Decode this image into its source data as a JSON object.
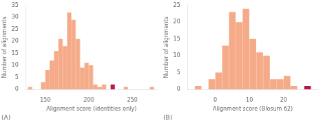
{
  "chart_data": [
    {
      "type": "bar",
      "x": [
        132.5,
        137.5,
        142.5,
        147.5,
        152.5,
        157.5,
        162.5,
        167.5,
        172.5,
        177.5,
        182.5,
        187.5,
        192.5,
        197.5,
        202.5,
        207.5,
        212.5,
        217.5,
        222.5,
        227.5,
        232.5,
        242.5,
        267.5,
        272.5
      ],
      "values": [
        1,
        0,
        0,
        3,
        8,
        12,
        16,
        21,
        18,
        32,
        29,
        21,
        9,
        11,
        10,
        2,
        1,
        2,
        0,
        2,
        0,
        1,
        0,
        1
      ],
      "colors": [
        "#f5aa88",
        "#f5aa88",
        "#f5aa88",
        "#f5aa88",
        "#f5aa88",
        "#f5aa88",
        "#f5aa88",
        "#f5aa88",
        "#f5aa88",
        "#f5aa88",
        "#f5aa88",
        "#f5aa88",
        "#f5aa88",
        "#f5aa88",
        "#f5aa88",
        "#f5aa88",
        "#f5aa88",
        "#f5aa88",
        "#f5aa88",
        "#b5194a",
        "#f5aa88",
        "#f5aa88",
        "#f5aa88",
        "#f5aa88"
      ],
      "xlabel": "Alignment score (identities only)",
      "ylabel": "Number of alignments",
      "annotations": [
        "(A)"
      ],
      "xlim": [
        128,
        278
      ],
      "xticks": [
        150,
        200,
        250
      ],
      "ylim": [
        0,
        35
      ],
      "yticks": [
        0,
        5,
        10,
        15,
        20,
        25,
        30,
        35
      ],
      "grid": false
    },
    {
      "type": "bar",
      "x": [
        -5,
        -3,
        -1,
        1,
        3,
        5,
        7,
        9,
        11,
        13,
        15,
        17,
        19,
        21,
        23,
        25,
        27
      ],
      "values": [
        1,
        0,
        3,
        5,
        13,
        23,
        20,
        24,
        15,
        11,
        10,
        3,
        3,
        4,
        1,
        0,
        1
      ],
      "colors": [
        "#f5aa88",
        "#f5aa88",
        "#f5aa88",
        "#f5aa88",
        "#f5aa88",
        "#f5aa88",
        "#f5aa88",
        "#f5aa88",
        "#f5aa88",
        "#f5aa88",
        "#f5aa88",
        "#f5aa88",
        "#f5aa88",
        "#f5aa88",
        "#f5aa88",
        "#f5aa88",
        "#b5194a"
      ],
      "xlabel": "Alignment score (Blosum 62)",
      "ylabel": "Number of alignments",
      "annotations": [
        "(B)"
      ],
      "xlim": [
        -8,
        30
      ],
      "xticks": [
        0,
        10,
        20
      ],
      "ylim": [
        0,
        25
      ],
      "yticks": [
        0,
        5,
        10,
        15,
        20,
        25
      ],
      "grid": false
    }
  ]
}
